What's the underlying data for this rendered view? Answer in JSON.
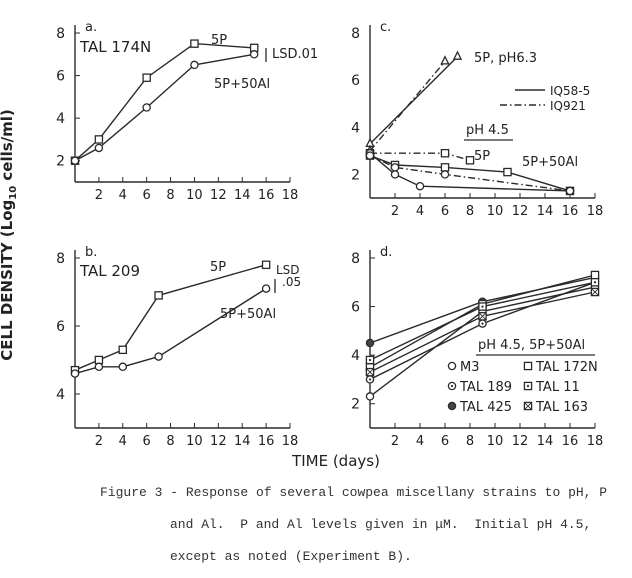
{
  "figure": {
    "y_axis_title_parts": [
      "CELL DENSITY (Log",
      "10",
      " cells/ml)"
    ],
    "x_axis_title": "TIME (days)"
  },
  "caption": {
    "line1": "Figure 3 - Response of several cowpea miscellany strains to pH, P",
    "line2": "and Al.  P and Al levels given in μM.  Initial pH 4.5,",
    "line3": "except as noted (Experiment B)."
  },
  "chart_data": [
    {
      "panel": "a.",
      "type": "line",
      "title": "TAL 174N",
      "xlim": [
        0,
        18
      ],
      "ylim": [
        1,
        8
      ],
      "xticks": [
        2,
        4,
        6,
        8,
        10,
        12,
        14,
        16,
        18
      ],
      "yticks": [
        2,
        4,
        6,
        8
      ],
      "series": [
        {
          "name": "5P",
          "marker": "square",
          "x": [
            0,
            2,
            6,
            10,
            15
          ],
          "y": [
            2.0,
            3.0,
            5.9,
            7.5,
            7.3
          ]
        },
        {
          "name": "5P+50Al",
          "marker": "circle",
          "x": [
            0,
            2,
            6,
            10,
            15
          ],
          "y": [
            2.0,
            2.6,
            4.5,
            6.5,
            7.0
          ]
        }
      ],
      "annotations": [
        {
          "text": "LSD.01",
          "x": 16.2,
          "y": 7.2
        }
      ]
    },
    {
      "panel": "b.",
      "type": "line",
      "title": "TAL 209",
      "xlim": [
        0,
        18
      ],
      "ylim": [
        3,
        8
      ],
      "xticks": [
        2,
        4,
        6,
        8,
        10,
        12,
        14,
        16,
        18
      ],
      "yticks": [
        4,
        6,
        8
      ],
      "series": [
        {
          "name": "5P",
          "marker": "square",
          "x": [
            0,
            2,
            4,
            7,
            16
          ],
          "y": [
            4.7,
            5.0,
            5.3,
            6.9,
            7.8
          ]
        },
        {
          "name": "5P+50Al",
          "marker": "circle",
          "x": [
            0,
            2,
            4,
            7,
            16
          ],
          "y": [
            4.6,
            4.8,
            4.8,
            5.1,
            7.1
          ]
        }
      ],
      "annotations": [
        {
          "text": "LSD",
          "x": 17.0,
          "y": 7.6
        },
        {
          "text": ".05",
          "x": 17.0,
          "y": 6.8
        }
      ]
    },
    {
      "panel": "c.",
      "type": "line",
      "title": "",
      "xlim": [
        0,
        18
      ],
      "ylim": [
        1,
        8
      ],
      "xticks": [
        2,
        4,
        6,
        8,
        10,
        12,
        14,
        16,
        18
      ],
      "ytick_labels": [
        2,
        4,
        6,
        8
      ],
      "legend": [
        {
          "label": "IQ58-5",
          "style": "solid"
        },
        {
          "label": "IQ921",
          "style": "dashdot"
        }
      ],
      "group_labels": [
        "5P, pH6.3",
        "pH 4.5",
        "5P",
        "5P+50Al"
      ],
      "series": [
        {
          "name": "5P, pH6.3",
          "style": "solid",
          "marker": "triangle",
          "x": [
            0,
            7
          ],
          "y": [
            3.3,
            7.0
          ]
        },
        {
          "name": "5P, pH6.3",
          "style": "dashdot",
          "marker": "triangle",
          "x": [
            0,
            6
          ],
          "y": [
            3.0,
            6.8
          ]
        },
        {
          "name": "5P",
          "style": "solid",
          "marker": "square",
          "x": [
            0,
            2,
            6,
            11,
            16
          ],
          "y": [
            2.8,
            2.4,
            2.3,
            2.1,
            1.3
          ]
        },
        {
          "name": "5P",
          "style": "dashdot",
          "marker": "square",
          "x": [
            0,
            6,
            8
          ],
          "y": [
            2.9,
            2.9,
            2.6
          ]
        },
        {
          "name": "5P+50Al",
          "style": "solid",
          "marker": "circle",
          "x": [
            0,
            2,
            4,
            16
          ],
          "y": [
            2.9,
            2.0,
            1.5,
            1.3
          ]
        },
        {
          "name": "5P+50Al",
          "style": "dashdot",
          "marker": "circle",
          "x": [
            0,
            2,
            6,
            16
          ],
          "y": [
            2.8,
            2.3,
            2.0,
            1.3
          ]
        }
      ]
    },
    {
      "panel": "d.",
      "type": "line",
      "title": "pH 4.5, 5P+50Al",
      "xlim": [
        0,
        18
      ],
      "ylim": [
        1,
        8
      ],
      "xticks": [
        2,
        4,
        6,
        8,
        10,
        12,
        14,
        16,
        18
      ],
      "yticks": [
        2,
        4,
        6,
        8
      ],
      "series": [
        {
          "name": "M3",
          "marker": "circle",
          "x": [
            0,
            9,
            18
          ],
          "y": [
            2.3,
            5.8,
            6.8
          ]
        },
        {
          "name": "TAL 189",
          "marker": "circle-dot",
          "x": [
            0,
            9,
            18
          ],
          "y": [
            3.0,
            5.3,
            7.0
          ]
        },
        {
          "name": "TAL 425",
          "marker": "circle-filled",
          "x": [
            0,
            9,
            18
          ],
          "y": [
            4.5,
            6.2,
            7.2
          ]
        },
        {
          "name": "TAL 172N",
          "marker": "square",
          "x": [
            0,
            9,
            18
          ],
          "y": [
            3.5,
            6.1,
            7.3
          ]
        },
        {
          "name": "TAL 11",
          "marker": "square-dot",
          "x": [
            0,
            9,
            18
          ],
          "y": [
            3.8,
            6.0,
            7.0
          ]
        },
        {
          "name": "TAL 163",
          "marker": "square-x",
          "x": [
            0,
            9,
            18
          ],
          "y": [
            3.3,
            5.6,
            6.6
          ]
        }
      ]
    }
  ]
}
